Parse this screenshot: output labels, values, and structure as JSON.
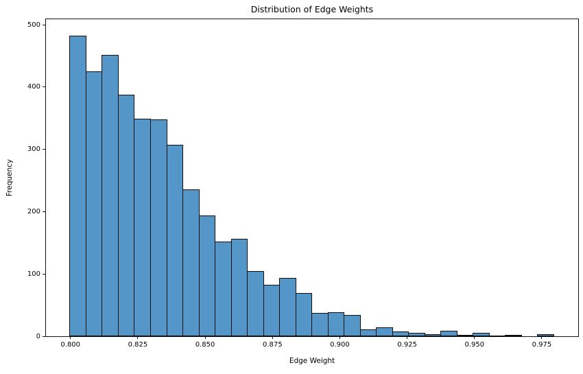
{
  "chart_data": {
    "type": "bar",
    "variant": "histogram",
    "title": "Distribution of Edge Weights",
    "xlabel": "Edge Weight",
    "ylabel": "Frequency",
    "bins": {
      "start": 0.7998,
      "width": 0.0059867,
      "count": 30
    },
    "frequencies": [
      482,
      425,
      451,
      387,
      349,
      348,
      307,
      235,
      193,
      152,
      156,
      104,
      82,
      93,
      69,
      37,
      38,
      34,
      11,
      14,
      7,
      5,
      3,
      8,
      2,
      5,
      1,
      2,
      0,
      3
    ],
    "xticks": {
      "values": [
        0.8,
        0.825,
        0.85,
        0.875,
        0.9,
        0.925,
        0.95,
        0.975
      ],
      "labels": [
        "0.800",
        "0.825",
        "0.850",
        "0.875",
        "0.900",
        "0.925",
        "0.950",
        "0.975"
      ]
    },
    "yticks": {
      "values": [
        0,
        100,
        200,
        300,
        400,
        500
      ],
      "labels": [
        "0",
        "100",
        "200",
        "300",
        "400",
        "500"
      ]
    },
    "xlim": [
      0.7909,
      0.9885
    ],
    "ylim": [
      0,
      509
    ],
    "grid": false,
    "legend_position": "none",
    "colors": {
      "bar_fill": "#5596c8",
      "bar_edge": "#0d0d0d",
      "spine": "#141414",
      "text": "#000000",
      "background": "#ffffff"
    }
  }
}
